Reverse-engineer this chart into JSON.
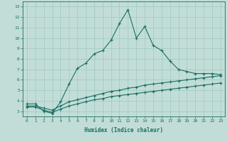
{
  "xlabel": "Humidex (Indice chaleur)",
  "x_values": [
    0,
    1,
    2,
    3,
    4,
    5,
    6,
    7,
    8,
    9,
    10,
    11,
    12,
    13,
    14,
    15,
    16,
    17,
    18,
    19,
    20,
    21,
    22,
    23
  ],
  "line1_y": [
    3.7,
    3.7,
    3.0,
    2.8,
    3.9,
    5.6,
    7.1,
    7.6,
    8.5,
    8.8,
    9.8,
    11.4,
    12.7,
    10.0,
    11.1,
    9.3,
    8.8,
    7.8,
    7.0,
    6.8,
    6.6,
    6.6,
    6.6,
    6.5
  ],
  "line2_y": [
    3.5,
    3.5,
    3.3,
    3.1,
    3.5,
    3.9,
    4.1,
    4.3,
    4.5,
    4.7,
    4.9,
    5.0,
    5.2,
    5.3,
    5.5,
    5.6,
    5.7,
    5.8,
    5.9,
    6.0,
    6.1,
    6.2,
    6.3,
    6.4
  ],
  "line3_y": [
    3.4,
    3.4,
    3.1,
    2.9,
    3.2,
    3.5,
    3.7,
    3.9,
    4.1,
    4.2,
    4.4,
    4.5,
    4.6,
    4.7,
    4.8,
    4.9,
    5.0,
    5.1,
    5.2,
    5.3,
    5.4,
    5.5,
    5.6,
    5.7
  ],
  "line_color": "#1a6e60",
  "bg_color": "#c2ddd8",
  "grid_color": "#9ec8c0",
  "ylim": [
    2.5,
    13.5
  ],
  "xlim": [
    -0.5,
    23.5
  ],
  "yticks": [
    3,
    4,
    5,
    6,
    7,
    8,
    9,
    10,
    11,
    12,
    13
  ],
  "xticks": [
    0,
    1,
    2,
    3,
    4,
    5,
    6,
    7,
    8,
    9,
    10,
    11,
    12,
    13,
    14,
    15,
    16,
    17,
    18,
    19,
    20,
    21,
    22,
    23
  ],
  "marker": "+"
}
